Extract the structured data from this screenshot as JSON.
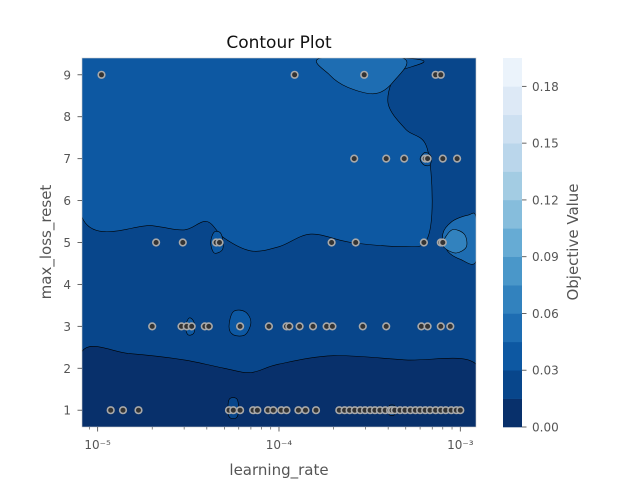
{
  "chart_data": {
    "type": "contour",
    "title": "Contour Plot",
    "xlabel": "learning_rate",
    "ylabel": "max_loss_reset",
    "x_scale": "log",
    "xlim": [
      8.2e-06,
      0.00122
    ],
    "ylim": [
      0.6,
      9.4
    ],
    "x_ticks": [
      {
        "value": 1e-05,
        "label": "10⁻⁵"
      },
      {
        "value": 0.0001,
        "label": "10⁻⁴"
      },
      {
        "value": 0.001,
        "label": "10⁻³"
      }
    ],
    "y_ticks": [
      {
        "value": 1,
        "label": "1"
      },
      {
        "value": 2,
        "label": "2"
      },
      {
        "value": 3,
        "label": "3"
      },
      {
        "value": 4,
        "label": "4"
      },
      {
        "value": 5,
        "label": "5"
      },
      {
        "value": 6,
        "label": "6"
      },
      {
        "value": 7,
        "label": "7"
      },
      {
        "value": 8,
        "label": "8"
      },
      {
        "value": 9,
        "label": "9"
      }
    ],
    "grid": false,
    "colorbar": {
      "label": "Objective Value",
      "range": [
        0.0,
        0.195
      ],
      "ticks": [
        {
          "value": 0.0,
          "label": "0.00"
        },
        {
          "value": 0.03,
          "label": "0.03"
        },
        {
          "value": 0.06,
          "label": "0.06"
        },
        {
          "value": 0.09,
          "label": "0.09"
        },
        {
          "value": 0.12,
          "label": "0.12"
        },
        {
          "value": 0.15,
          "label": "0.15"
        },
        {
          "value": 0.18,
          "label": "0.18"
        }
      ],
      "levels": [
        0.0,
        0.015,
        0.03,
        0.045,
        0.06,
        0.075,
        0.09,
        0.105,
        0.12,
        0.135,
        0.15,
        0.165,
        0.18,
        0.195
      ],
      "colors": [
        "#08306b",
        "#08468b",
        "#0d58a2",
        "#1e6db2",
        "#3282be",
        "#4a97c9",
        "#66abd4",
        "#86bddc",
        "#a3cce3",
        "#bad6eb",
        "#cde0f1",
        "#dde9f6",
        "#ebf3fb"
      ]
    },
    "regions": [
      {
        "level_index": 0,
        "boundary": [
          [
            8.2e-06,
            0.6
          ],
          [
            0.00122,
            0.6
          ],
          [
            0.00122,
            2.1
          ],
          [
            0.0005,
            2.2
          ],
          [
            0.0002,
            2.3
          ],
          [
            0.0001,
            2.1
          ],
          [
            7e-05,
            1.9
          ],
          [
            5e-05,
            2.0
          ],
          [
            3e-05,
            2.2
          ],
          [
            1.5e-05,
            2.35
          ],
          [
            8.2e-06,
            2.4
          ]
        ]
      },
      {
        "level_index": 2,
        "boundary": [
          [
            8.2e-06,
            5.6
          ],
          [
            2e-05,
            5.4
          ],
          [
            3e-05,
            5.3
          ],
          [
            4e-05,
            5.5
          ],
          [
            5e-05,
            5.1
          ],
          [
            7e-05,
            4.8
          ],
          [
            0.0001,
            4.9
          ],
          [
            0.00015,
            5.2
          ],
          [
            0.00025,
            5.0
          ],
          [
            0.0005,
            4.9
          ],
          [
            0.00065,
            5.05
          ],
          [
            0.0007,
            6.0
          ],
          [
            0.00065,
            7.3
          ],
          [
            0.0005,
            7.7
          ],
          [
            0.0004,
            8.3
          ],
          [
            0.00043,
            9.0
          ],
          [
            0.00048,
            9.4
          ],
          [
            8.2e-06,
            9.4
          ]
        ]
      },
      {
        "level_index": 3,
        "boundary": [
          [
            0.00017,
            9.4
          ],
          [
            0.00019,
            9.0
          ],
          [
            0.00024,
            8.7
          ],
          [
            0.00034,
            8.55
          ],
          [
            0.00043,
            8.85
          ],
          [
            0.00048,
            9.4
          ]
        ]
      },
      {
        "level_index": 3,
        "boundary": [
          [
            0.00122,
            5.6
          ],
          [
            0.0011,
            5.65
          ],
          [
            0.0009,
            5.5
          ],
          [
            0.0008,
            5.2
          ],
          [
            0.00085,
            4.8
          ],
          [
            0.001,
            4.6
          ],
          [
            0.00122,
            4.55
          ]
        ]
      },
      {
        "level_index": 4,
        "boundary": [
          [
            0.0008,
            5.0
          ],
          [
            0.0009,
            5.3
          ],
          [
            0.00105,
            5.2
          ],
          [
            0.00108,
            4.9
          ],
          [
            0.00095,
            4.75
          ],
          [
            0.00083,
            4.85
          ]
        ]
      },
      {
        "level_index": 2,
        "boundary": [
          [
            5.3e-05,
            3.0
          ],
          [
            5.6e-05,
            3.35
          ],
          [
            6.5e-05,
            3.35
          ],
          [
            7e-05,
            3.1
          ],
          [
            6.5e-05,
            2.8
          ],
          [
            5.6e-05,
            2.8
          ]
        ]
      },
      {
        "level_index": 2,
        "boundary": [
          [
            4.2e-05,
            5.0
          ],
          [
            4.4e-05,
            5.25
          ],
          [
            4.8e-05,
            5.2
          ],
          [
            4.9e-05,
            4.85
          ],
          [
            4.4e-05,
            4.75
          ]
        ]
      },
      {
        "level_index": 2,
        "boundary": [
          [
            3.05e-05,
            3.0
          ],
          [
            3.2e-05,
            3.2
          ],
          [
            3.4e-05,
            3.1
          ],
          [
            3.4e-05,
            2.85
          ],
          [
            3.15e-05,
            2.8
          ]
        ]
      },
      {
        "level_index": 2,
        "boundary": [
          [
            0.0006,
            7.0
          ],
          [
            0.00064,
            7.15
          ],
          [
            0.00069,
            7.05
          ],
          [
            0.00068,
            6.85
          ],
          [
            0.00063,
            6.85
          ]
        ]
      },
      {
        "level_index": 1,
        "boundary": [
          [
            5.3e-05,
            0.85
          ],
          [
            5.3e-05,
            1.25
          ],
          [
            5.9e-05,
            1.25
          ],
          [
            5.9e-05,
            0.85
          ]
        ]
      },
      {
        "level_index": 1,
        "boundary": [
          [
            0.000405,
            0.9
          ],
          [
            0.000405,
            1.1
          ],
          [
            0.000435,
            1.1
          ],
          [
            0.000435,
            0.9
          ]
        ]
      }
    ],
    "points": [
      {
        "x": 1.05e-05,
        "y": 9
      },
      {
        "x": 0.000122,
        "y": 9
      },
      {
        "x": 0.000295,
        "y": 9
      },
      {
        "x": 0.00073,
        "y": 9
      },
      {
        "x": 0.00078,
        "y": 9
      },
      {
        "x": 0.00026,
        "y": 7
      },
      {
        "x": 0.00039,
        "y": 7
      },
      {
        "x": 0.00049,
        "y": 7
      },
      {
        "x": 0.00064,
        "y": 7
      },
      {
        "x": 0.00066,
        "y": 7
      },
      {
        "x": 0.0008,
        "y": 7
      },
      {
        "x": 0.00096,
        "y": 7
      },
      {
        "x": 2.1e-05,
        "y": 5
      },
      {
        "x": 2.95e-05,
        "y": 5
      },
      {
        "x": 4.5e-05,
        "y": 5
      },
      {
        "x": 4.7e-05,
        "y": 5
      },
      {
        "x": 0.000195,
        "y": 5
      },
      {
        "x": 0.000265,
        "y": 5
      },
      {
        "x": 0.00063,
        "y": 5
      },
      {
        "x": 0.00078,
        "y": 5
      },
      {
        "x": 0.0008,
        "y": 5
      },
      {
        "x": 2e-05,
        "y": 3
      },
      {
        "x": 2.9e-05,
        "y": 3
      },
      {
        "x": 3.1e-05,
        "y": 3
      },
      {
        "x": 3.3e-05,
        "y": 3
      },
      {
        "x": 3.9e-05,
        "y": 3
      },
      {
        "x": 4.1e-05,
        "y": 3
      },
      {
        "x": 6.1e-05,
        "y": 3
      },
      {
        "x": 8.8e-05,
        "y": 3
      },
      {
        "x": 0.00011,
        "y": 3
      },
      {
        "x": 0.000114,
        "y": 3
      },
      {
        "x": 0.00013,
        "y": 3
      },
      {
        "x": 0.000154,
        "y": 3
      },
      {
        "x": 0.000183,
        "y": 3
      },
      {
        "x": 0.000197,
        "y": 3
      },
      {
        "x": 0.00029,
        "y": 3
      },
      {
        "x": 0.00039,
        "y": 3
      },
      {
        "x": 0.00061,
        "y": 3
      },
      {
        "x": 0.00066,
        "y": 3
      },
      {
        "x": 0.00078,
        "y": 3
      },
      {
        "x": 0.00088,
        "y": 3
      },
      {
        "x": 1.18e-05,
        "y": 1
      },
      {
        "x": 1.38e-05,
        "y": 1
      },
      {
        "x": 1.68e-05,
        "y": 1
      },
      {
        "x": 5.3e-05,
        "y": 1
      },
      {
        "x": 5.6e-05,
        "y": 1
      },
      {
        "x": 6.1e-05,
        "y": 1
      },
      {
        "x": 7.2e-05,
        "y": 1
      },
      {
        "x": 7.6e-05,
        "y": 1
      },
      {
        "x": 8.7e-05,
        "y": 1
      },
      {
        "x": 9.3e-05,
        "y": 1
      },
      {
        "x": 0.000103,
        "y": 1
      },
      {
        "x": 0.00011,
        "y": 1
      },
      {
        "x": 0.000128,
        "y": 1
      },
      {
        "x": 0.00014,
        "y": 1
      },
      {
        "x": 0.00016,
        "y": 1
      },
      {
        "x": 0.000215,
        "y": 1
      },
      {
        "x": 0.00023,
        "y": 1
      },
      {
        "x": 0.000245,
        "y": 1
      },
      {
        "x": 0.000262,
        "y": 1
      },
      {
        "x": 0.00028,
        "y": 1
      },
      {
        "x": 0.000298,
        "y": 1
      },
      {
        "x": 0.000318,
        "y": 1
      },
      {
        "x": 0.000338,
        "y": 1
      },
      {
        "x": 0.00036,
        "y": 1
      },
      {
        "x": 0.000385,
        "y": 1
      },
      {
        "x": 0.00041,
        "y": 1
      },
      {
        "x": 0.00042,
        "y": 1
      },
      {
        "x": 0.000435,
        "y": 1
      },
      {
        "x": 0.000465,
        "y": 1
      },
      {
        "x": 0.000495,
        "y": 1
      },
      {
        "x": 0.00053,
        "y": 1
      },
      {
        "x": 0.000565,
        "y": 1
      },
      {
        "x": 0.0006,
        "y": 1
      },
      {
        "x": 0.00064,
        "y": 1
      },
      {
        "x": 0.00068,
        "y": 1
      },
      {
        "x": 0.00073,
        "y": 1
      },
      {
        "x": 0.00078,
        "y": 1
      },
      {
        "x": 0.00083,
        "y": 1
      },
      {
        "x": 0.00089,
        "y": 1
      },
      {
        "x": 0.00095,
        "y": 1
      },
      {
        "x": 0.001,
        "y": 1
      }
    ]
  }
}
